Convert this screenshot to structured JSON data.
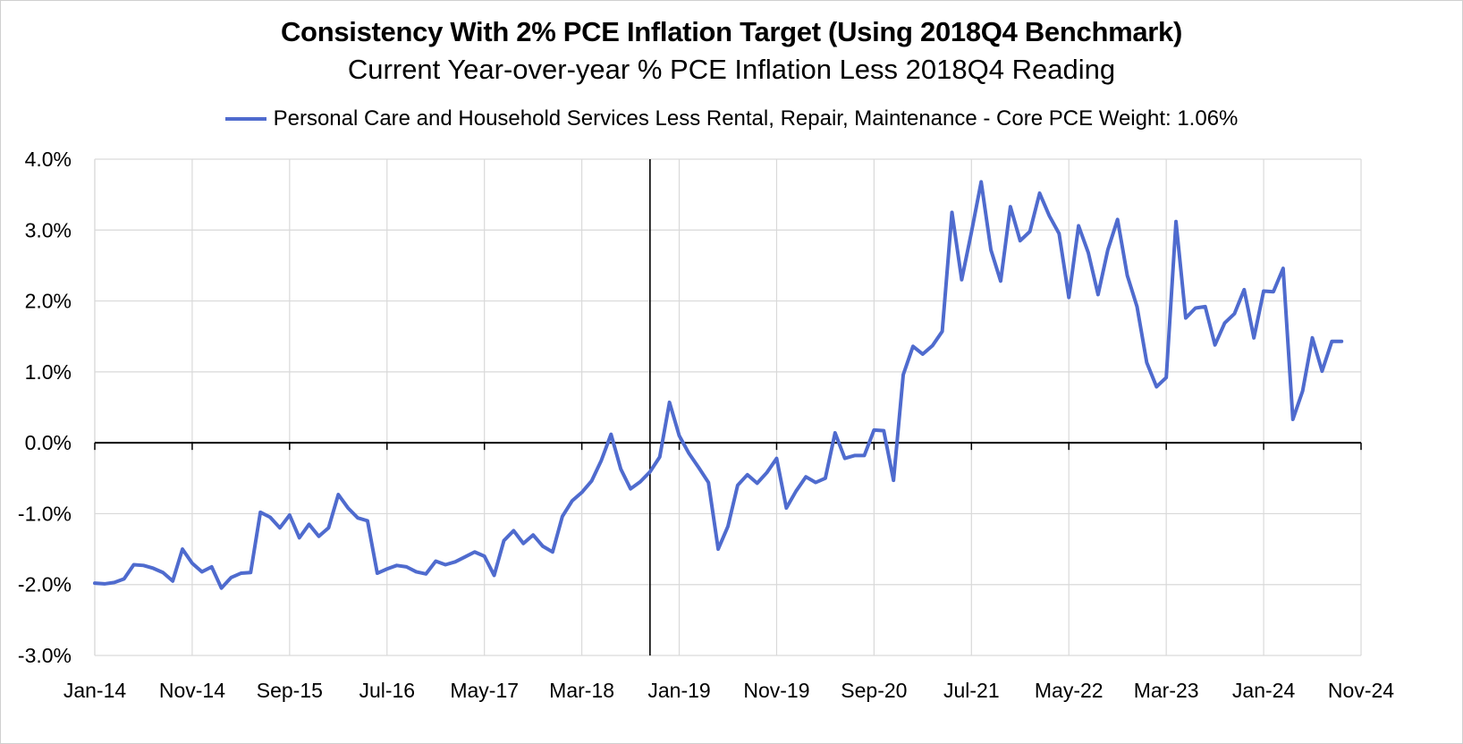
{
  "chart_data": {
    "type": "line",
    "title": "Consistency With 2% PCE Inflation Target (Using 2018Q4 Benchmark)",
    "subtitle": "Current Year-over-year % PCE Inflation Less 2018Q4 Reading",
    "xlabel": "",
    "ylabel": "",
    "ylim": [
      -3.0,
      4.0
    ],
    "y_ticks": [
      "4.0%",
      "3.0%",
      "2.0%",
      "1.0%",
      "0.0%",
      "-1.0%",
      "-2.0%",
      "-3.0%"
    ],
    "y_tick_values": [
      4,
      3,
      2,
      1,
      0,
      -1,
      -2,
      -3
    ],
    "x_ticks": [
      "Jan-14",
      "Nov-14",
      "Sep-15",
      "Jul-16",
      "May-17",
      "Mar-18",
      "Jan-19",
      "Nov-19",
      "Sep-20",
      "Jul-21",
      "May-22",
      "Mar-23",
      "Jan-24",
      "Nov-24"
    ],
    "x_tick_months": [
      0,
      10,
      20,
      30,
      40,
      50,
      60,
      70,
      80,
      90,
      100,
      110,
      120,
      130
    ],
    "x_range_months": [
      0,
      130
    ],
    "vertical_marker_month": 57,
    "grid": true,
    "legend_position": "top",
    "series": [
      {
        "name": "Personal Care and Household Services Less Rental, Repair, Maintenance - Core PCE Weight: 1.06%",
        "color": "#4f6bce",
        "start": "Jan-14",
        "values": [
          -1.98,
          -1.99,
          -1.97,
          -1.92,
          -1.72,
          -1.73,
          -1.77,
          -1.83,
          -1.95,
          -1.5,
          -1.7,
          -1.82,
          -1.75,
          -2.05,
          -1.9,
          -1.84,
          -1.83,
          -0.98,
          -1.05,
          -1.2,
          -1.02,
          -1.34,
          -1.15,
          -1.32,
          -1.2,
          -0.73,
          -0.92,
          -1.06,
          -1.1,
          -1.84,
          -1.78,
          -1.73,
          -1.75,
          -1.82,
          -1.85,
          -1.67,
          -1.72,
          -1.68,
          -1.61,
          -1.54,
          -1.6,
          -1.87,
          -1.38,
          -1.24,
          -1.42,
          -1.3,
          -1.46,
          -1.54,
          -1.04,
          -0.82,
          -0.7,
          -0.54,
          -0.25,
          0.12,
          -0.37,
          -0.65,
          -0.55,
          -0.41,
          -0.2,
          0.57,
          0.1,
          -0.15,
          -0.35,
          -0.56,
          -1.5,
          -1.18,
          -0.6,
          -0.45,
          -0.57,
          -0.42,
          -0.22,
          -0.92,
          -0.68,
          -0.48,
          -0.56,
          -0.5,
          0.14,
          -0.22,
          -0.18,
          -0.18,
          0.18,
          0.17,
          -0.53,
          0.96,
          1.36,
          1.25,
          1.37,
          1.57,
          3.25,
          2.3,
          2.97,
          3.68,
          2.72,
          2.28,
          3.33,
          2.85,
          2.98,
          3.52,
          3.2,
          2.95,
          2.05,
          3.06,
          2.68,
          2.09,
          2.72,
          3.15,
          2.36,
          1.92,
          1.13,
          0.79,
          0.92,
          3.12,
          1.76,
          1.9,
          1.92,
          1.38,
          1.69,
          1.82,
          2.16,
          1.48,
          2.14,
          2.13,
          2.46,
          0.33,
          0.73,
          1.48,
          1.01,
          1.43,
          1.43
        ]
      }
    ]
  }
}
